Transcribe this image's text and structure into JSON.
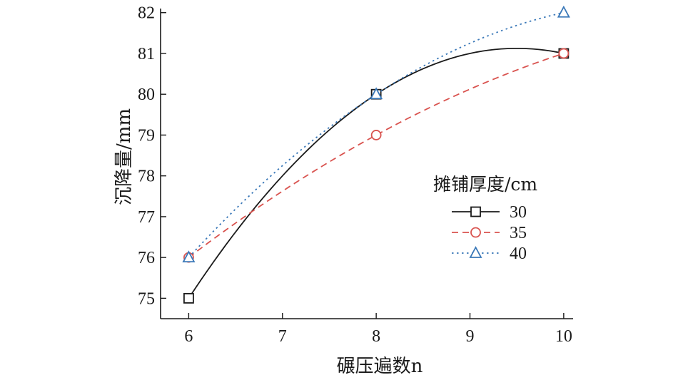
{
  "chart_data": {
    "type": "line",
    "xlabel": "碾压遍数n",
    "ylabel": "沉降量/mm",
    "x": [
      6,
      8,
      10
    ],
    "xlim": [
      5.7,
      10.1
    ],
    "ylim": [
      74.5,
      82.1
    ],
    "xticks": [
      6,
      7,
      8,
      9,
      10
    ],
    "yticks": [
      75,
      76,
      77,
      78,
      79,
      80,
      81,
      82
    ],
    "grid": false,
    "smooth": true,
    "legend": {
      "title": "摊铺厚度/cm",
      "position": "right"
    },
    "series": [
      {
        "name": "30",
        "values": [
          75,
          80,
          81
        ],
        "color": "#1a1a1a",
        "marker": "square",
        "line": "solid"
      },
      {
        "name": "35",
        "values": [
          76,
          79,
          81
        ],
        "color": "#d9534f",
        "marker": "circle",
        "line": "dashed"
      },
      {
        "name": "40",
        "values": [
          76,
          80,
          82
        ],
        "color": "#3a78b8",
        "marker": "triangle",
        "line": "dotted"
      }
    ]
  }
}
